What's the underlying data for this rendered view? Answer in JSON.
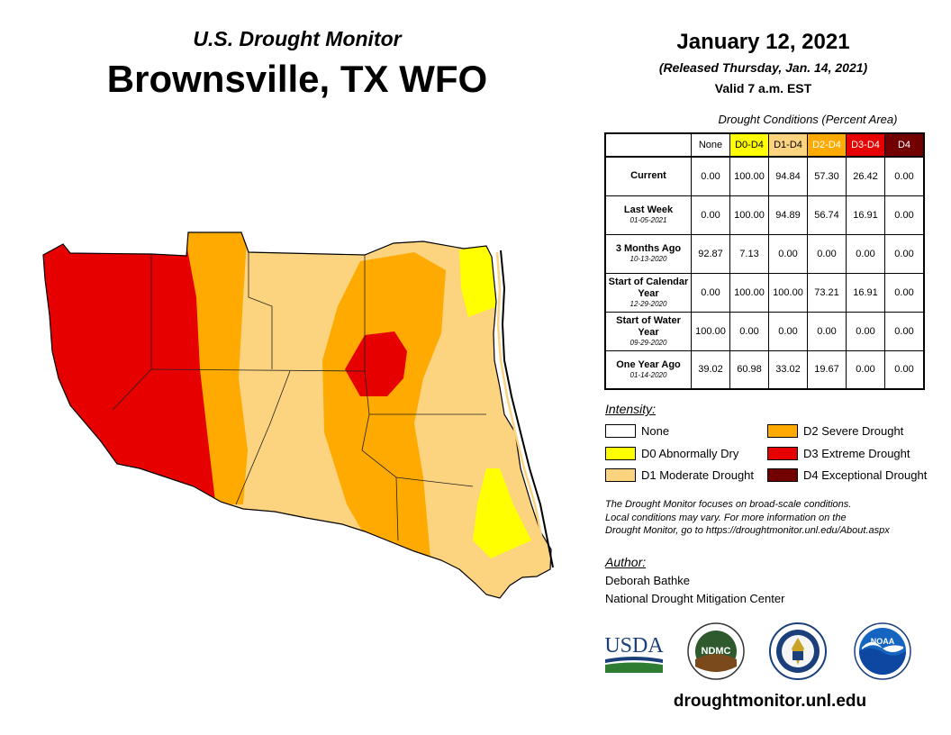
{
  "header": {
    "subtitle": "U.S. Drought Monitor",
    "title": "Brownsville, TX WFO",
    "date": "January 12, 2021",
    "released": "(Released Thursday, Jan. 14, 2021)",
    "valid": "Valid 7 a.m. EST"
  },
  "table": {
    "title": "Drought Conditions (Percent Area)",
    "columns": [
      {
        "label": "None",
        "color": "#ffffff",
        "text_color": "#000000"
      },
      {
        "label": "D0-D4",
        "color": "#ffff00",
        "text_color": "#000000"
      },
      {
        "label": "D1-D4",
        "color": "#fcd37f",
        "text_color": "#000000"
      },
      {
        "label": "D2-D4",
        "color": "#ffaa00",
        "text_color": "#ffffff"
      },
      {
        "label": "D3-D4",
        "color": "#e60000",
        "text_color": "#ffffff"
      },
      {
        "label": "D4",
        "color": "#730000",
        "text_color": "#ffffff"
      }
    ],
    "rows": [
      {
        "label": "Current",
        "sublabel": "",
        "values": [
          "0.00",
          "100.00",
          "94.84",
          "57.30",
          "26.42",
          "0.00"
        ]
      },
      {
        "label": "Last Week",
        "sublabel": "01-05-2021",
        "values": [
          "0.00",
          "100.00",
          "94.89",
          "56.74",
          "16.91",
          "0.00"
        ]
      },
      {
        "label": "3 Months Ago",
        "sublabel": "10-13-2020",
        "values": [
          "92.87",
          "7.13",
          "0.00",
          "0.00",
          "0.00",
          "0.00"
        ]
      },
      {
        "label": "Start of Calendar Year",
        "sublabel": "12-29-2020",
        "values": [
          "0.00",
          "100.00",
          "100.00",
          "73.21",
          "16.91",
          "0.00"
        ]
      },
      {
        "label": "Start of Water Year",
        "sublabel": "09-29-2020",
        "values": [
          "100.00",
          "0.00",
          "0.00",
          "0.00",
          "0.00",
          "0.00"
        ]
      },
      {
        "label": "One Year Ago",
        "sublabel": "01-14-2020",
        "values": [
          "39.02",
          "60.98",
          "33.02",
          "19.67",
          "0.00",
          "0.00"
        ]
      }
    ]
  },
  "legend": {
    "title": "Intensity:",
    "items": [
      {
        "label": "None",
        "color": "#ffffff"
      },
      {
        "label": "D0 Abnormally Dry",
        "color": "#ffff00"
      },
      {
        "label": "D1 Moderate Drought",
        "color": "#fcd37f"
      },
      {
        "label": "D2 Severe Drought",
        "color": "#ffaa00"
      },
      {
        "label": "D3 Extreme Drought",
        "color": "#e60000"
      },
      {
        "label": "D4 Exceptional Drought",
        "color": "#730000"
      }
    ]
  },
  "note": {
    "line1": "The Drought Monitor focuses on broad-scale conditions.",
    "line2": "Local conditions may vary. For more information on the",
    "line3": "Drought Monitor, go to https://droughtmonitor.unl.edu/About.aspx"
  },
  "author": {
    "label": "Author:",
    "name": "Deborah Bathke",
    "org": "National Drought Mitigation Center"
  },
  "logos": {
    "usda": "USDA",
    "ndmc": "NDMC",
    "noaa": "NOAA"
  },
  "footer": {
    "url": "droughtmonitor.unl.edu"
  },
  "colors": {
    "d0": "#ffff00",
    "d1": "#fcd37f",
    "d2": "#ffaa00",
    "d3": "#e60000",
    "d4": "#730000"
  }
}
